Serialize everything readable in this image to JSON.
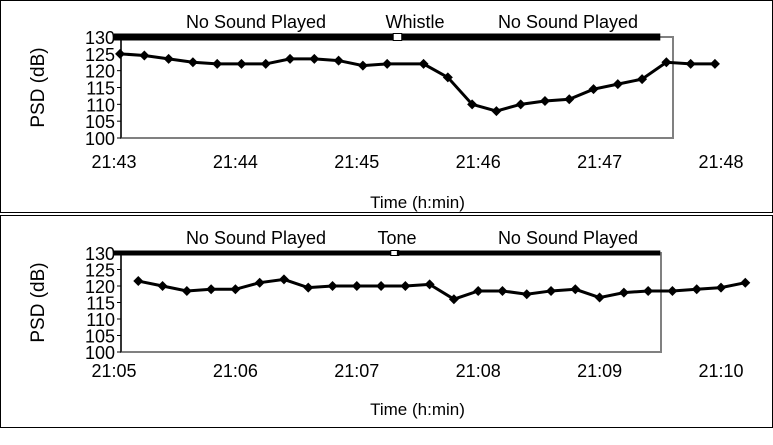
{
  "chart_data": [
    {
      "type": "line",
      "xlabel": "Time (h:min)",
      "ylabel": "PSD (dB)",
      "x_ticks": [
        "21:43",
        "21:44",
        "21:45",
        "21:46",
        "21:47",
        "21:48"
      ],
      "xlim": [
        0,
        5
      ],
      "ylim": [
        100,
        130
      ],
      "y_ticks": [
        "130",
        "125",
        "120",
        "115",
        "110",
        "105",
        "100"
      ],
      "grid": false,
      "annotations": {
        "segments": [
          {
            "label": "No Sound Played",
            "start": 0,
            "end": 2.3
          },
          {
            "label": "Whistle",
            "start": 2.3,
            "end": 2.37
          },
          {
            "label": "No Sound Played",
            "start": 2.37,
            "end": 4.5
          }
        ]
      },
      "series": [
        {
          "values": [
            [
              0.05,
              125
            ],
            [
              0.25,
              124.5
            ],
            [
              0.45,
              123.5
            ],
            [
              0.65,
              122.5
            ],
            [
              0.85,
              122
            ],
            [
              1.05,
              122
            ],
            [
              1.25,
              122
            ],
            [
              1.45,
              123.5
            ],
            [
              1.65,
              123.5
            ],
            [
              1.85,
              123
            ],
            [
              2.05,
              121.5
            ],
            [
              2.25,
              122
            ],
            [
              2.55,
              122
            ],
            [
              2.75,
              118
            ],
            [
              2.95,
              110
            ],
            [
              3.15,
              108
            ],
            [
              3.35,
              110
            ],
            [
              3.55,
              111
            ],
            [
              3.75,
              111.5
            ],
            [
              3.95,
              114.5
            ],
            [
              4.15,
              116
            ],
            [
              4.35,
              117.5
            ],
            [
              4.55,
              122.5
            ],
            [
              4.75,
              122
            ],
            [
              4.95,
              122
            ]
          ]
        }
      ]
    },
    {
      "type": "line",
      "xlabel": "Time (h:min)",
      "ylabel": "PSD (dB)",
      "x_ticks": [
        "21:05",
        "21:06",
        "21:07",
        "21:08",
        "21:09",
        "21:10"
      ],
      "xlim": [
        0,
        5
      ],
      "ylim": [
        100,
        130
      ],
      "y_ticks": [
        "130",
        "125",
        "120",
        "115",
        "110",
        "105",
        "100"
      ],
      "grid": false,
      "annotations": {
        "segments": [
          {
            "label": "No Sound Played",
            "start": 0,
            "end": 2.28
          },
          {
            "label": "Tone",
            "start": 2.28,
            "end": 2.33
          },
          {
            "label": "No Sound Played",
            "start": 2.33,
            "end": 4.5
          }
        ]
      },
      "series": [
        {
          "values": [
            [
              0.2,
              121.5
            ],
            [
              0.4,
              120
            ],
            [
              0.6,
              118.5
            ],
            [
              0.8,
              119
            ],
            [
              1.0,
              119
            ],
            [
              1.2,
              121
            ],
            [
              1.4,
              122
            ],
            [
              1.6,
              119.5
            ],
            [
              1.8,
              120
            ],
            [
              2.0,
              120
            ],
            [
              2.2,
              120
            ],
            [
              2.4,
              120
            ],
            [
              2.6,
              120.5
            ],
            [
              2.8,
              116
            ],
            [
              3.0,
              118.5
            ],
            [
              3.2,
              118.5
            ],
            [
              3.4,
              117.5
            ],
            [
              3.6,
              118.5
            ],
            [
              3.8,
              119
            ],
            [
              4.0,
              116.5
            ],
            [
              4.2,
              118
            ],
            [
              4.4,
              118.5
            ],
            [
              4.6,
              118.5
            ],
            [
              4.8,
              119
            ],
            [
              5.0,
              119.5
            ],
            [
              5.2,
              121
            ]
          ]
        }
      ]
    }
  ]
}
